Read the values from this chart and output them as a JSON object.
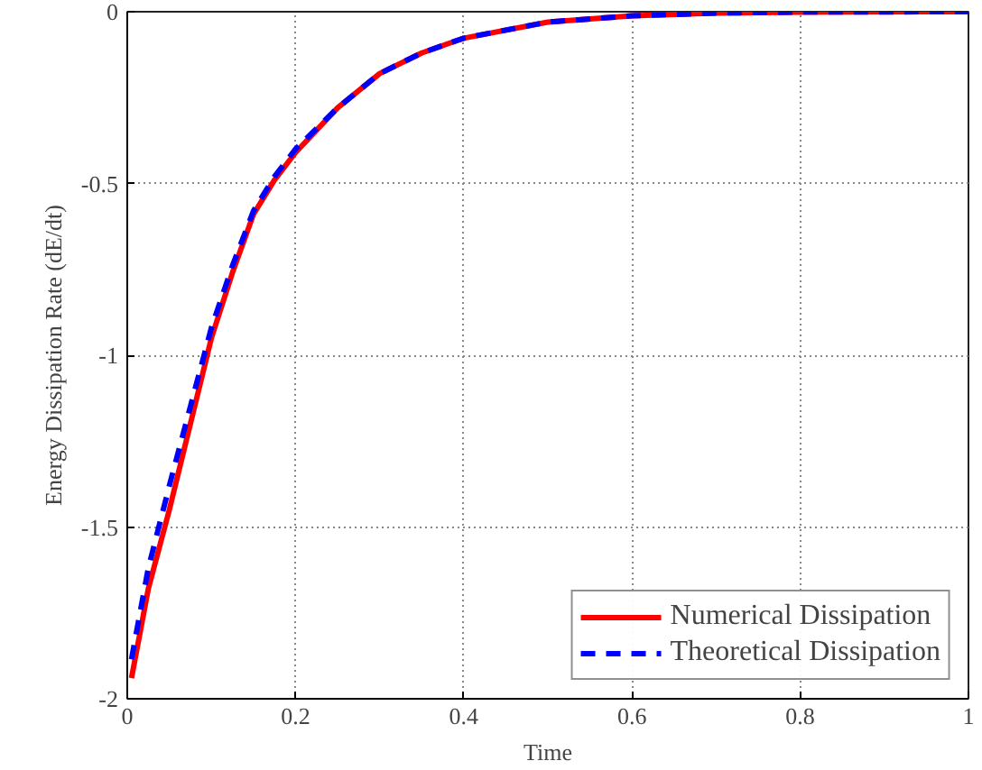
{
  "chart_data": {
    "type": "line",
    "xlabel": "Time",
    "ylabel": "Energy Dissipation Rate (dE/dt)",
    "xlim": [
      0,
      1
    ],
    "ylim": [
      -2,
      0
    ],
    "xticks": [
      0,
      0.2,
      0.4,
      0.6,
      0.8,
      1
    ],
    "yticks": [
      -2,
      -1.5,
      -1,
      -0.5,
      0
    ],
    "grid": true,
    "legend": "bottom right",
    "series": [
      {
        "name": "Numerical Dissipation",
        "color": "#ff0000",
        "line_style": "solid",
        "x": [
          0.005,
          0.025,
          0.05,
          0.075,
          0.1,
          0.125,
          0.15,
          0.175,
          0.2,
          0.25,
          0.3,
          0.35,
          0.4,
          0.5,
          0.6,
          0.7,
          0.8,
          1
        ],
        "values": [
          -1.94,
          -1.68,
          -1.45,
          -1.2,
          -0.95,
          -0.76,
          -0.59,
          -0.49,
          -0.41,
          -0.28,
          -0.18,
          -0.12,
          -0.077,
          -0.03,
          -0.012,
          -0.004,
          -0.001,
          0
        ]
      },
      {
        "name": "Theoretical Dissipation",
        "color": "#0000ff",
        "line_style": "dashed",
        "x": [
          0.005,
          0.025,
          0.05,
          0.075,
          0.1,
          0.125,
          0.15,
          0.175,
          0.2,
          0.25,
          0.3,
          0.35,
          0.4,
          0.5,
          0.6,
          0.7,
          0.8,
          1
        ],
        "values": [
          -1.885,
          -1.62,
          -1.38,
          -1.15,
          -0.92,
          -0.74,
          -0.58,
          -0.48,
          -0.4,
          -0.28,
          -0.18,
          -0.12,
          -0.077,
          -0.03,
          -0.012,
          -0.004,
          -0.001,
          0
        ]
      }
    ]
  }
}
